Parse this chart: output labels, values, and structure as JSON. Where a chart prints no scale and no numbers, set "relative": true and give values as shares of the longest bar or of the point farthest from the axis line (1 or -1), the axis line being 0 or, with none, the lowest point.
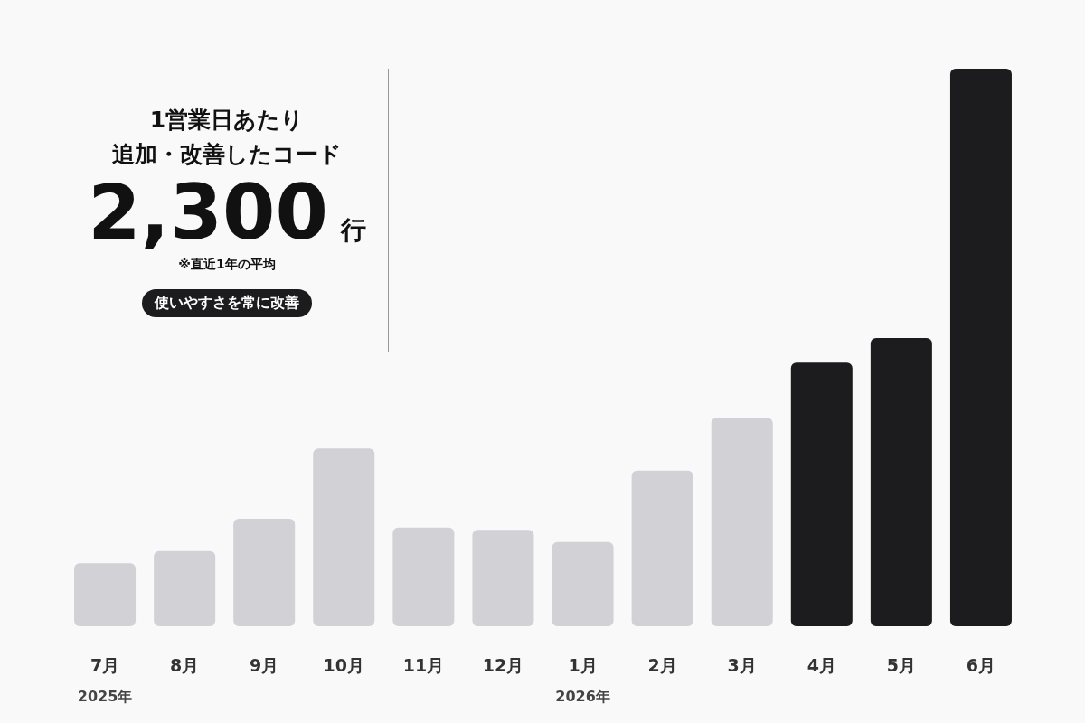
{
  "chart_data": {
    "type": "bar",
    "relative": true,
    "title": "1営業日あたり",
    "subtitle": "追加・改善したコード",
    "categories": [
      "7月\n2025年",
      "8月",
      "9月",
      "10月",
      "11月",
      "12月",
      "1月\n2026年",
      "2月",
      "3月",
      "4月",
      "5月",
      "6月"
    ],
    "values": [
      0.113,
      0.135,
      0.193,
      0.319,
      0.177,
      0.173,
      0.151,
      0.279,
      0.374,
      0.473,
      0.517,
      1
    ],
    "colors": [
      "#d1d1d6",
      "#d1d1d6",
      "#d1d1d6",
      "#d1d1d6",
      "#d1d1d6",
      "#d1d1d6",
      "#d1d1d6",
      "#d1d1d6",
      "#d1d1d6",
      "#1c1c1e",
      "#1c1c1e",
      "#1c1c1e"
    ],
    "annotations": [
      "2,300",
      "行",
      "※直近1年の平均",
      "使いやすさを常に改善"
    ]
  }
}
